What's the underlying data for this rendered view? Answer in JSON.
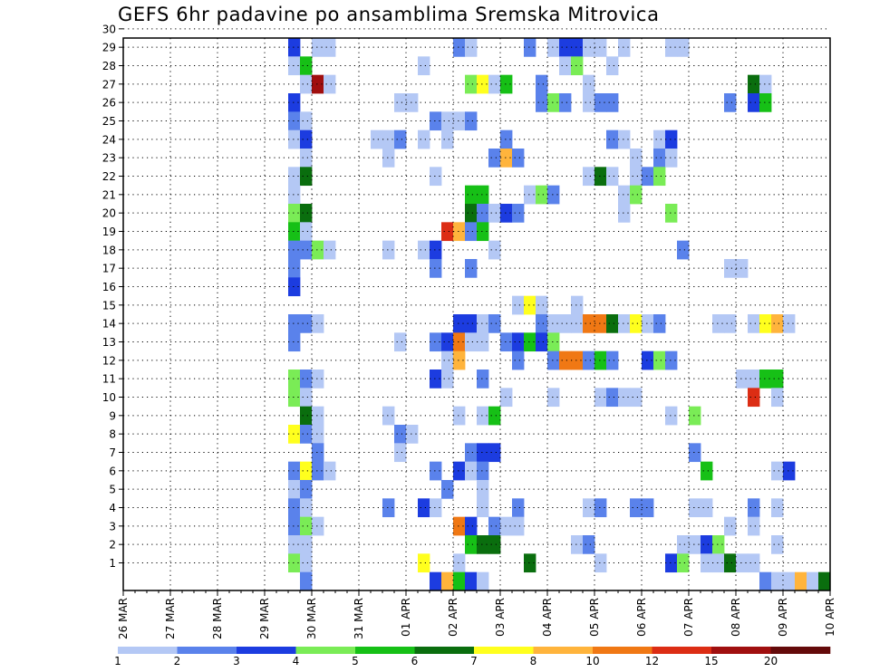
{
  "chart_data": {
    "type": "heatmap",
    "title": "GEFS 6hr padavine po ansamblima Sremska Mitrovica",
    "xlabel": "",
    "ylabel": "",
    "x_tick_labels": [
      "26 MAR",
      "27 MAR",
      "28 MAR",
      "29 MAR",
      "30 MAR",
      "31 MAR",
      "01 APR",
      "02 APR",
      "03 APR",
      "04 APR",
      "05 APR",
      "06 APR",
      "07 APR",
      "08 APR",
      "09 APR",
      "10 APR"
    ],
    "y_tick_labels": [
      "1",
      "2",
      "3",
      "4",
      "5",
      "6",
      "7",
      "8",
      "9",
      "10",
      "11",
      "12",
      "13",
      "14",
      "15",
      "16",
      "17",
      "18",
      "19",
      "20",
      "21",
      "22",
      "23",
      "24",
      "25",
      "26",
      "27",
      "28",
      "29",
      "30"
    ],
    "x_unit": "6-hour step from 26 MAR 00Z",
    "grid": true,
    "colorbar": {
      "labels": [
        "1",
        "2",
        "3",
        "4",
        "5",
        "6",
        "7",
        "8",
        "10",
        "12",
        "15",
        "20"
      ],
      "colors": [
        "#b4c8f5",
        "#5a82eb",
        "#1c3ce0",
        "#7aec56",
        "#16c016",
        "#0a6e0e",
        "#ffff1e",
        "#ffb43c",
        "#f07814",
        "#dc2d14",
        "#a00f0f",
        "#640a0a"
      ]
    },
    "series": [
      {
        "member": 30,
        "cells": [
          [
            14,
            1
          ],
          [
            21,
            2
          ],
          [
            24,
            1
          ],
          [
            25,
            3
          ],
          [
            39,
            1
          ],
          [
            40,
            1
          ],
          [
            47,
            2
          ],
          [
            48,
            3
          ],
          [
            50,
            1
          ]
        ]
      },
      {
        "member": 29,
        "cells": [
          [
            14,
            3
          ],
          [
            16,
            1
          ],
          [
            17,
            1
          ],
          [
            28,
            2
          ],
          [
            29,
            1
          ],
          [
            34,
            2
          ],
          [
            36,
            1
          ],
          [
            37,
            3
          ],
          [
            38,
            3
          ],
          [
            39,
            1
          ],
          [
            40,
            1
          ],
          [
            42,
            1
          ],
          [
            46,
            1
          ],
          [
            47,
            1
          ]
        ]
      },
      {
        "member": 28,
        "cells": [
          [
            14,
            1
          ],
          [
            15,
            5
          ],
          [
            25,
            1
          ],
          [
            37,
            1
          ],
          [
            38,
            4
          ],
          [
            41,
            1
          ]
        ]
      },
      {
        "member": 27,
        "cells": [
          [
            15,
            1
          ],
          [
            16,
            11
          ],
          [
            17,
            1
          ],
          [
            29,
            4
          ],
          [
            30,
            7
          ],
          [
            31,
            1
          ],
          [
            32,
            5
          ],
          [
            35,
            2
          ],
          [
            39,
            1
          ],
          [
            53,
            6
          ],
          [
            54,
            1
          ]
        ]
      },
      {
        "member": 26,
        "cells": [
          [
            14,
            3
          ],
          [
            23,
            1
          ],
          [
            24,
            1
          ],
          [
            35,
            2
          ],
          [
            36,
            4
          ],
          [
            37,
            2
          ],
          [
            39,
            1
          ],
          [
            40,
            2
          ],
          [
            41,
            2
          ],
          [
            51,
            2
          ],
          [
            53,
            3
          ],
          [
            54,
            5
          ]
        ]
      },
      {
        "member": 25,
        "cells": [
          [
            14,
            2
          ],
          [
            15,
            1
          ],
          [
            26,
            2
          ],
          [
            27,
            1
          ],
          [
            28,
            1
          ],
          [
            29,
            2
          ]
        ]
      },
      {
        "member": 24,
        "cells": [
          [
            14,
            1
          ],
          [
            15,
            3
          ],
          [
            21,
            1
          ],
          [
            22,
            1
          ],
          [
            23,
            2
          ],
          [
            25,
            1
          ],
          [
            27,
            1
          ],
          [
            32,
            2
          ],
          [
            41,
            2
          ],
          [
            42,
            1
          ],
          [
            45,
            1
          ],
          [
            46,
            3
          ]
        ]
      },
      {
        "member": 23,
        "cells": [
          [
            15,
            1
          ],
          [
            22,
            1
          ],
          [
            31,
            2
          ],
          [
            32,
            8
          ],
          [
            33,
            2
          ],
          [
            43,
            1
          ],
          [
            45,
            2
          ],
          [
            46,
            1
          ]
        ]
      },
      {
        "member": 22,
        "cells": [
          [
            14,
            1
          ],
          [
            15,
            6
          ],
          [
            26,
            1
          ],
          [
            39,
            1
          ],
          [
            40,
            6
          ],
          [
            41,
            1
          ],
          [
            43,
            1
          ],
          [
            44,
            2
          ],
          [
            45,
            4
          ]
        ]
      },
      {
        "member": 21,
        "cells": [
          [
            14,
            1
          ],
          [
            29,
            5
          ],
          [
            30,
            5
          ],
          [
            34,
            1
          ],
          [
            35,
            4
          ],
          [
            36,
            2
          ],
          [
            42,
            1
          ],
          [
            43,
            4
          ]
        ]
      },
      {
        "member": 20,
        "cells": [
          [
            14,
            4
          ],
          [
            15,
            6
          ],
          [
            29,
            6
          ],
          [
            30,
            2
          ],
          [
            31,
            1
          ],
          [
            32,
            3
          ],
          [
            33,
            2
          ],
          [
            42,
            1
          ],
          [
            46,
            4
          ]
        ]
      },
      {
        "member": 19,
        "cells": [
          [
            14,
            5
          ],
          [
            15,
            1
          ],
          [
            27,
            10
          ],
          [
            28,
            8
          ],
          [
            29,
            2
          ],
          [
            30,
            5
          ]
        ]
      },
      {
        "member": 18,
        "cells": [
          [
            14,
            2
          ],
          [
            15,
            2
          ],
          [
            16,
            4
          ],
          [
            17,
            1
          ],
          [
            22,
            1
          ],
          [
            25,
            1
          ],
          [
            26,
            3
          ],
          [
            31,
            1
          ],
          [
            47,
            2
          ]
        ]
      },
      {
        "member": 17,
        "cells": [
          [
            14,
            2
          ],
          [
            26,
            2
          ],
          [
            29,
            2
          ],
          [
            51,
            1
          ],
          [
            52,
            1
          ]
        ]
      },
      {
        "member": 16,
        "cells": [
          [
            14,
            3
          ]
        ]
      },
      {
        "member": 15,
        "cells": [
          [
            33,
            1
          ],
          [
            34,
            7
          ],
          [
            35,
            1
          ],
          [
            38,
            1
          ]
        ]
      },
      {
        "member": 14,
        "cells": [
          [
            14,
            2
          ],
          [
            15,
            2
          ],
          [
            16,
            1
          ],
          [
            28,
            3
          ],
          [
            29,
            3
          ],
          [
            30,
            1
          ],
          [
            31,
            2
          ],
          [
            35,
            2
          ],
          [
            36,
            1
          ],
          [
            37,
            1
          ],
          [
            38,
            1
          ],
          [
            39,
            9
          ],
          [
            40,
            9
          ],
          [
            41,
            6
          ],
          [
            42,
            1
          ],
          [
            43,
            7
          ],
          [
            44,
            1
          ],
          [
            45,
            2
          ],
          [
            50,
            1
          ],
          [
            51,
            1
          ],
          [
            53,
            1
          ],
          [
            54,
            7
          ],
          [
            55,
            8
          ],
          [
            56,
            1
          ]
        ]
      },
      {
        "member": 13,
        "cells": [
          [
            14,
            2
          ],
          [
            23,
            1
          ],
          [
            26,
            2
          ],
          [
            27,
            3
          ],
          [
            28,
            9
          ],
          [
            29,
            1
          ],
          [
            30,
            1
          ],
          [
            32,
            2
          ],
          [
            33,
            3
          ],
          [
            34,
            5
          ],
          [
            35,
            3
          ],
          [
            36,
            4
          ]
        ]
      },
      {
        "member": 12,
        "cells": [
          [
            27,
            1
          ],
          [
            28,
            8
          ],
          [
            33,
            2
          ],
          [
            36,
            2
          ],
          [
            37,
            9
          ],
          [
            38,
            9
          ],
          [
            39,
            2
          ],
          [
            40,
            5
          ],
          [
            41,
            2
          ],
          [
            44,
            3
          ],
          [
            45,
            4
          ],
          [
            46,
            2
          ]
        ]
      },
      {
        "member": 11,
        "cells": [
          [
            14,
            4
          ],
          [
            15,
            2
          ],
          [
            16,
            1
          ],
          [
            26,
            3
          ],
          [
            27,
            1
          ],
          [
            30,
            2
          ],
          [
            52,
            1
          ],
          [
            53,
            1
          ],
          [
            54,
            5
          ],
          [
            55,
            5
          ]
        ]
      },
      {
        "member": 10,
        "cells": [
          [
            14,
            4
          ],
          [
            15,
            1
          ],
          [
            32,
            1
          ],
          [
            36,
            1
          ],
          [
            40,
            1
          ],
          [
            41,
            2
          ],
          [
            42,
            1
          ],
          [
            43,
            1
          ],
          [
            53,
            10
          ],
          [
            55,
            1
          ]
        ]
      },
      {
        "member": 9,
        "cells": [
          [
            15,
            6
          ],
          [
            16,
            1
          ],
          [
            22,
            1
          ],
          [
            28,
            1
          ],
          [
            30,
            1
          ],
          [
            31,
            5
          ],
          [
            46,
            1
          ],
          [
            48,
            4
          ]
        ]
      },
      {
        "member": 8,
        "cells": [
          [
            14,
            7
          ],
          [
            15,
            2
          ],
          [
            16,
            1
          ],
          [
            23,
            2
          ],
          [
            24,
            1
          ]
        ]
      },
      {
        "member": 7,
        "cells": [
          [
            16,
            2
          ],
          [
            23,
            1
          ],
          [
            29,
            2
          ],
          [
            30,
            3
          ],
          [
            31,
            3
          ],
          [
            48,
            2
          ]
        ]
      },
      {
        "member": 6,
        "cells": [
          [
            14,
            2
          ],
          [
            15,
            7
          ],
          [
            16,
            2
          ],
          [
            17,
            1
          ],
          [
            26,
            2
          ],
          [
            28,
            3
          ],
          [
            29,
            1
          ],
          [
            30,
            2
          ],
          [
            49,
            5
          ],
          [
            55,
            1
          ],
          [
            56,
            3
          ]
        ]
      },
      {
        "member": 5,
        "cells": [
          [
            14,
            1
          ],
          [
            15,
            2
          ],
          [
            27,
            2
          ],
          [
            30,
            1
          ]
        ]
      },
      {
        "member": 4,
        "cells": [
          [
            14,
            2
          ],
          [
            15,
            1
          ],
          [
            22,
            2
          ],
          [
            25,
            3
          ],
          [
            26,
            1
          ],
          [
            30,
            1
          ],
          [
            33,
            2
          ],
          [
            39,
            1
          ],
          [
            40,
            2
          ],
          [
            43,
            2
          ],
          [
            44,
            2
          ],
          [
            48,
            1
          ],
          [
            49,
            1
          ],
          [
            53,
            2
          ],
          [
            55,
            1
          ]
        ]
      },
      {
        "member": 3,
        "cells": [
          [
            14,
            2
          ],
          [
            15,
            4
          ],
          [
            16,
            1
          ],
          [
            28,
            9
          ],
          [
            29,
            3
          ],
          [
            31,
            2
          ],
          [
            32,
            1
          ],
          [
            33,
            1
          ],
          [
            51,
            1
          ],
          [
            53,
            1
          ]
        ]
      },
      {
        "member": 2,
        "cells": [
          [
            14,
            1
          ],
          [
            15,
            1
          ],
          [
            29,
            5
          ],
          [
            30,
            6
          ],
          [
            31,
            6
          ],
          [
            38,
            1
          ],
          [
            39,
            2
          ],
          [
            47,
            1
          ],
          [
            48,
            1
          ],
          [
            49,
            3
          ],
          [
            50,
            4
          ],
          [
            55,
            1
          ]
        ]
      },
      {
        "member": 1,
        "cells": [
          [
            14,
            4
          ],
          [
            15,
            1
          ],
          [
            25,
            7
          ],
          [
            28,
            1
          ],
          [
            34,
            6
          ],
          [
            40,
            1
          ],
          [
            46,
            3
          ],
          [
            47,
            4
          ],
          [
            49,
            1
          ],
          [
            50,
            1
          ],
          [
            51,
            6
          ],
          [
            52,
            1
          ],
          [
            53,
            1
          ]
        ]
      },
      {
        "member": 0,
        "cells": [
          [
            15,
            2
          ],
          [
            26,
            3
          ],
          [
            27,
            8
          ],
          [
            28,
            5
          ],
          [
            29,
            3
          ],
          [
            30,
            1
          ],
          [
            54,
            2
          ],
          [
            55,
            1
          ],
          [
            56,
            1
          ],
          [
            57,
            8
          ],
          [
            58,
            1
          ],
          [
            59,
            6
          ]
        ]
      }
    ]
  }
}
